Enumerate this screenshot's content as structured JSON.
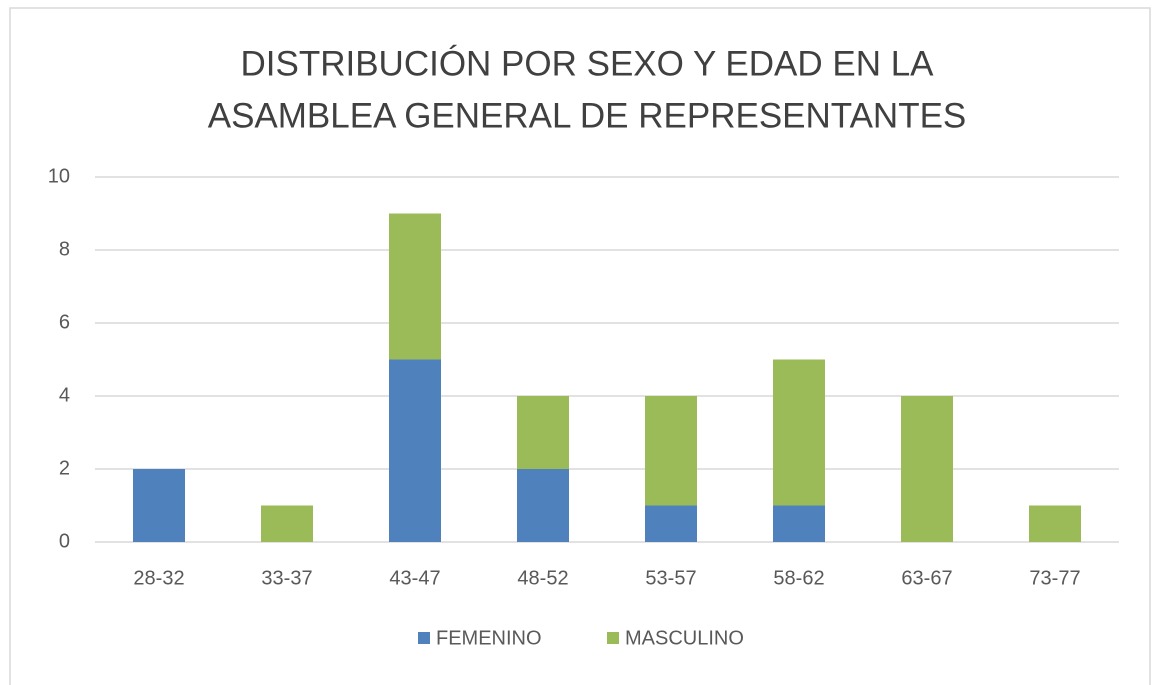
{
  "chart_data": {
    "type": "stacked_bar",
    "title": [
      "DISTRIBUCIÓN POR SEXO Y EDAD EN LA",
      "ASAMBLEA GENERAL DE REPRESENTANTES"
    ],
    "categories": [
      "28-32",
      "33-37",
      "43-47",
      "48-52",
      "53-57",
      "58-62",
      "63-67",
      "73-77"
    ],
    "series": [
      {
        "name": "FEMENINO",
        "color": "#4f81bd",
        "values": [
          2,
          0,
          5,
          2,
          1,
          1,
          0,
          0
        ]
      },
      {
        "name": "MASCULINO",
        "color": "#9bbb59",
        "values": [
          0,
          1,
          4,
          2,
          3,
          4,
          4,
          1
        ]
      }
    ],
    "ylim": [
      0,
      10
    ],
    "yticks": [
      0,
      2,
      4,
      6,
      8,
      10
    ],
    "grid": true,
    "legend": "bottom"
  }
}
